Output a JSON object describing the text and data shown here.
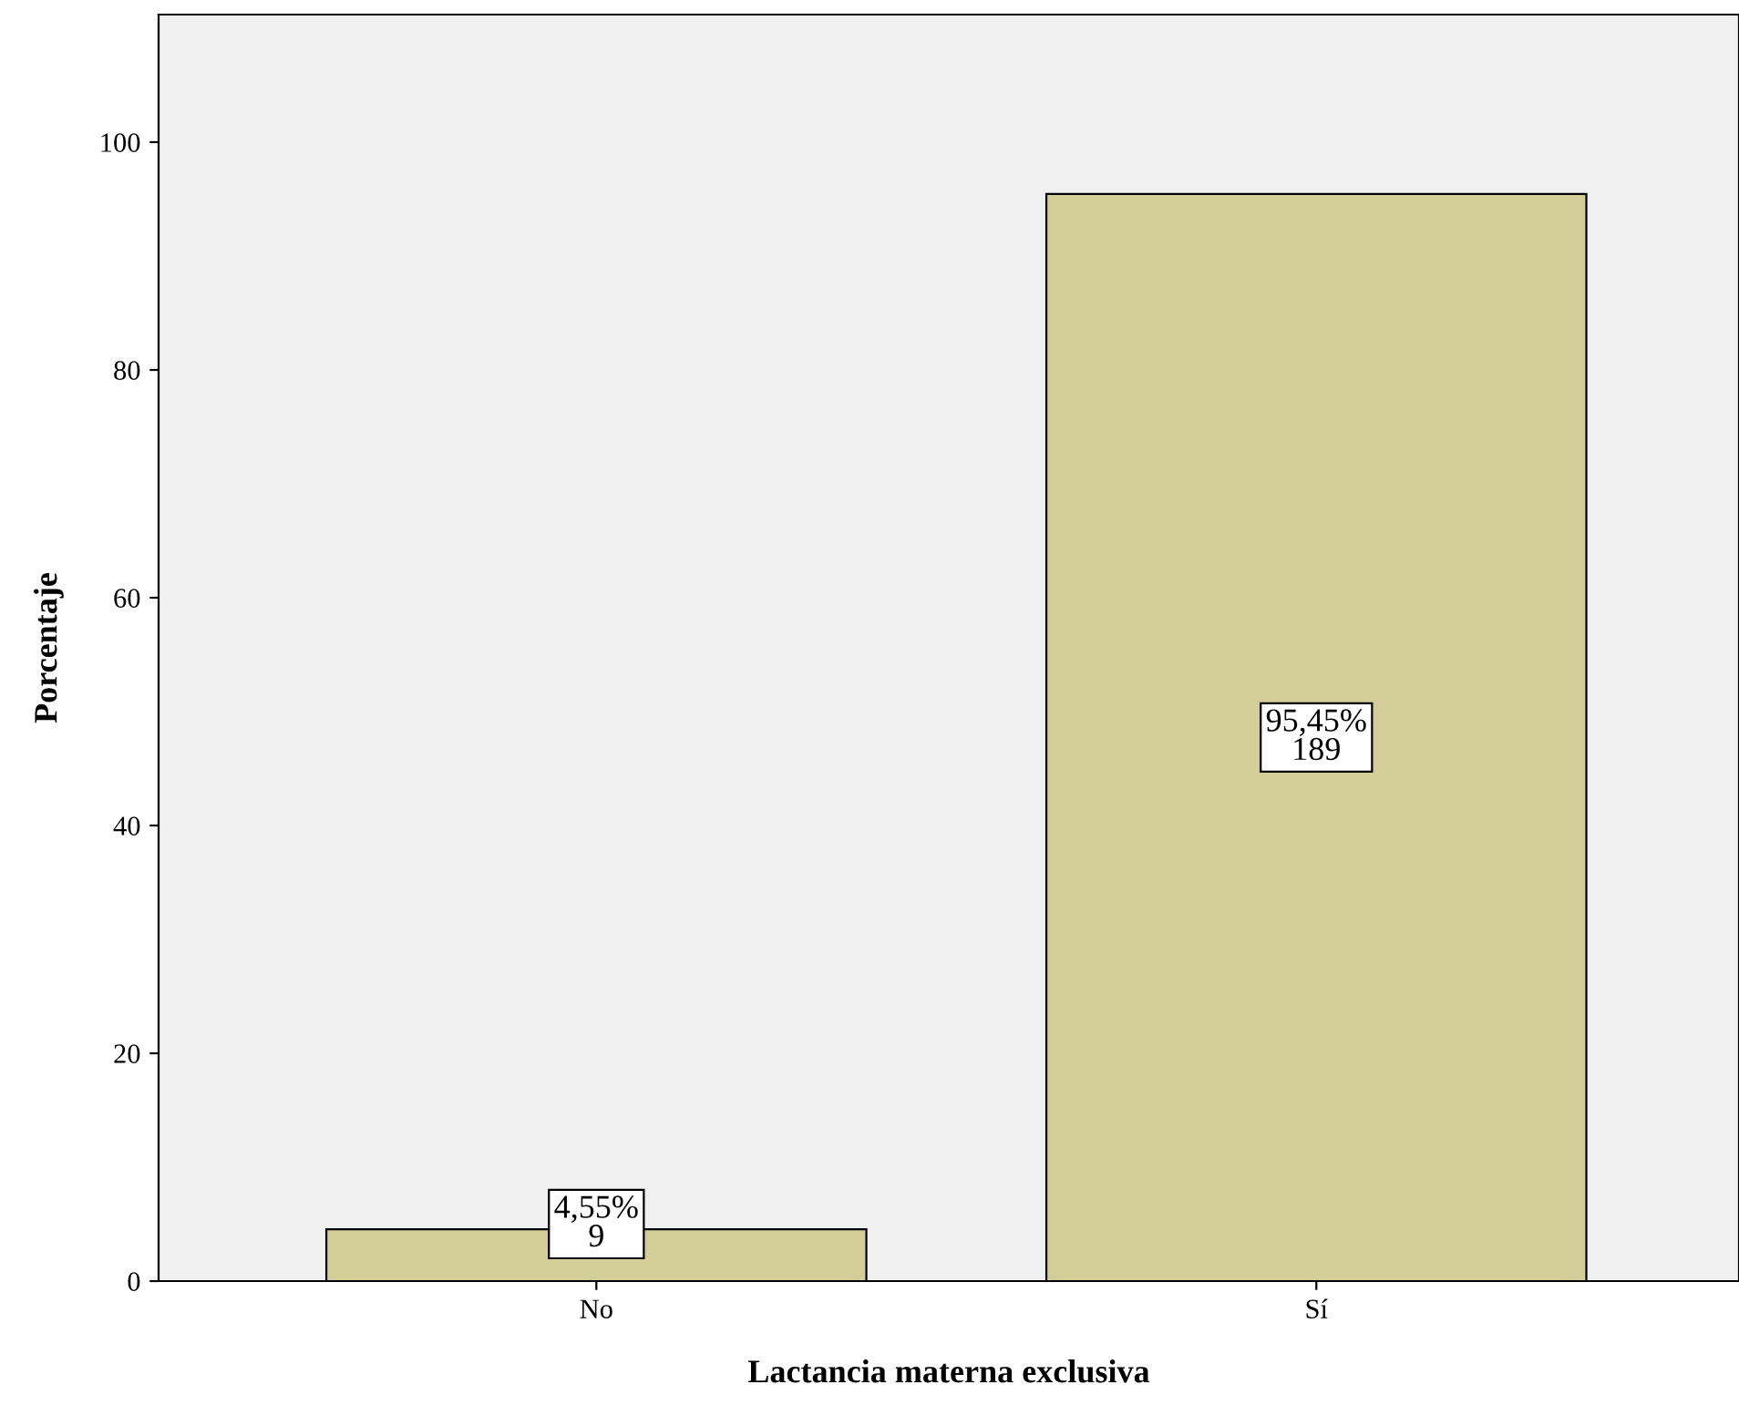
{
  "chart_data": {
    "type": "bar",
    "xlabel": "Lactancia materna exclusiva",
    "ylabel": "Porcentaje",
    "categories": [
      "No",
      "Sí"
    ],
    "values": [
      4.55,
      95.45
    ],
    "value_labels": [
      "4,55%\n9",
      "95,45%\n189"
    ],
    "color": "#d3ce97",
    "ylim": [
      0,
      111.2
    ],
    "yticks": [
      0,
      20,
      40,
      60,
      80,
      100
    ],
    "grid": false,
    "legend": false
  }
}
